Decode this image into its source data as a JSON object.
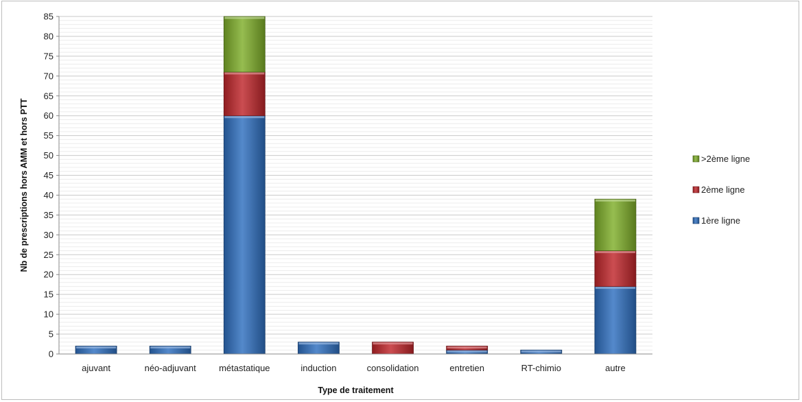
{
  "chart_data": {
    "type": "bar",
    "stacked": true,
    "categories": [
      "ajuvant",
      "néo-adjuvant",
      "métastatique",
      "induction",
      "consolidation",
      "entretien",
      "RT-chimio",
      "autre"
    ],
    "series": [
      {
        "name": "1ère ligne",
        "color": "#2f6fbf",
        "values": [
          2,
          2,
          60,
          3,
          0,
          1,
          1,
          17
        ]
      },
      {
        "name": "2ème ligne",
        "color": "#c0262b",
        "values": [
          0,
          0,
          11,
          0,
          3,
          1,
          0,
          9
        ]
      },
      {
        "name": ">2ème ligne",
        "color": "#7fae2a",
        "values": [
          0,
          0,
          14,
          0,
          0,
          0,
          0,
          13
        ]
      }
    ],
    "xlabel": "Type de traitement",
    "ylabel": "Nb de prescriptions hors AMM et hors PTT",
    "ylim": [
      0,
      85
    ],
    "ytick_step": 5,
    "grid": true,
    "legend_position": "right",
    "legend_order": [
      ">2ème ligne",
      "2ème ligne",
      "1ère ligne"
    ]
  }
}
